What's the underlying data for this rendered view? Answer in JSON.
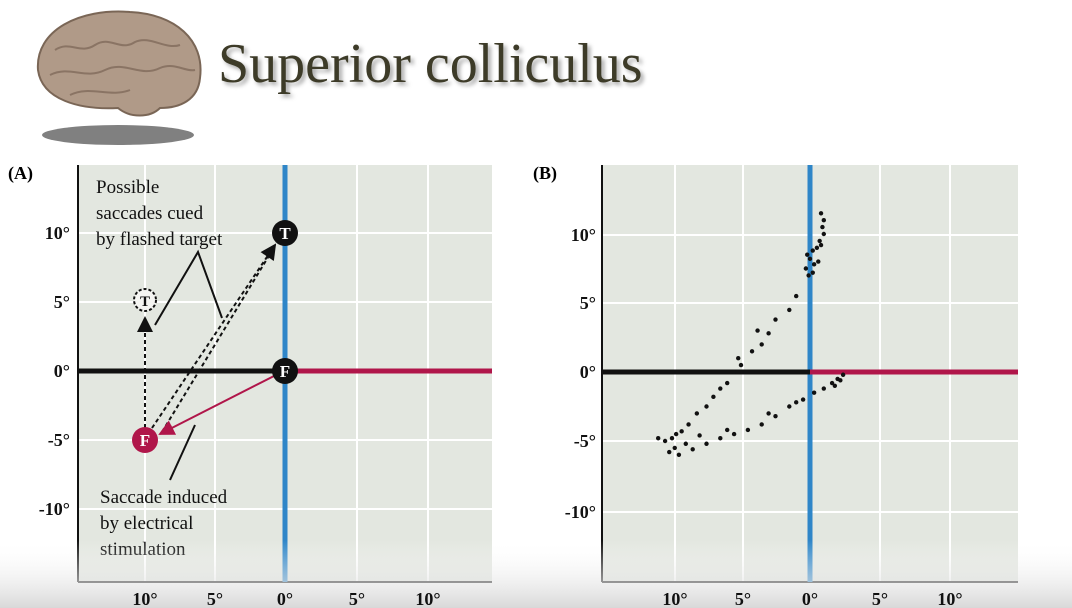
{
  "title": "Superior colliculus",
  "panel_a": {
    "label": "(A)",
    "y_tick_labels": [
      "10°",
      "5°",
      "0°",
      "-5°",
      "-10°"
    ],
    "x_tick_labels": [
      "10°",
      "5°",
      "0°",
      "5°",
      "10°"
    ],
    "target_label": "T",
    "fixation_label": "F",
    "cue_annotation": [
      "Possible",
      "saccades cued",
      "by flashed target"
    ],
    "stimulation_annotation": [
      "Saccade induced",
      "by electrical",
      "stimulation"
    ]
  },
  "panel_b": {
    "label": "(B)",
    "y_tick_labels": [
      "10°",
      "5°",
      "0°",
      "-5°",
      "-10°"
    ],
    "x_tick_labels": [
      "10°",
      "5°",
      "0°",
      "5°",
      "10°"
    ],
    "points": [
      [
        0.8,
        11.5
      ],
      [
        1,
        11
      ],
      [
        0.9,
        10.5
      ],
      [
        1,
        10
      ],
      [
        0.7,
        9.5
      ],
      [
        0.5,
        9
      ],
      [
        0.2,
        8.8
      ],
      [
        -0.2,
        8.5
      ],
      [
        0,
        8.2
      ],
      [
        0.6,
        8
      ],
      [
        0.3,
        7.8
      ],
      [
        -0.3,
        7.5
      ],
      [
        0.2,
        7.2
      ],
      [
        0.8,
        9.2
      ],
      [
        -0.1,
        7
      ],
      [
        -1,
        5.5
      ],
      [
        -1.5,
        4.5
      ],
      [
        -2.5,
        3.8
      ],
      [
        -3,
        2.8
      ],
      [
        -3.5,
        2
      ],
      [
        -4.2,
        1.5
      ],
      [
        -5,
        0.5
      ],
      [
        -5.5,
        0
      ],
      [
        -6,
        -0.8
      ],
      [
        -7,
        -1.8
      ],
      [
        -7.5,
        -2.5
      ],
      [
        -8.2,
        -3
      ],
      [
        -8.8,
        -3.8
      ],
      [
        -9.3,
        -4.3
      ],
      [
        -3.8,
        3
      ],
      [
        -5.2,
        1
      ],
      [
        -6.5,
        -1.2
      ],
      [
        -10,
        -4.8
      ],
      [
        -10.5,
        -5
      ],
      [
        -9.8,
        -5.5
      ],
      [
        -9.5,
        -6
      ],
      [
        -10.2,
        -5.8
      ],
      [
        -9,
        -5.2
      ],
      [
        -11,
        -4.8
      ],
      [
        -9.7,
        -4.5
      ],
      [
        -8.5,
        -5.6
      ],
      [
        -7.5,
        -5.2
      ],
      [
        -6.5,
        -4.8
      ],
      [
        -5.5,
        -4.5
      ],
      [
        -4.5,
        -4.2
      ],
      [
        -3.5,
        -3.8
      ],
      [
        -2.5,
        -3.2
      ],
      [
        -1.5,
        -2.5
      ],
      [
        -0.5,
        -2
      ],
      [
        0.3,
        -1.5
      ],
      [
        1,
        -1.2
      ],
      [
        1.6,
        -0.8
      ],
      [
        2,
        -0.5
      ],
      [
        2.4,
        -0.2
      ],
      [
        2.2,
        -0.6
      ],
      [
        1.8,
        -1
      ],
      [
        -8,
        -4.6
      ],
      [
        -6,
        -4.2
      ],
      [
        -3,
        -3
      ],
      [
        -1,
        -2.2
      ]
    ]
  }
}
